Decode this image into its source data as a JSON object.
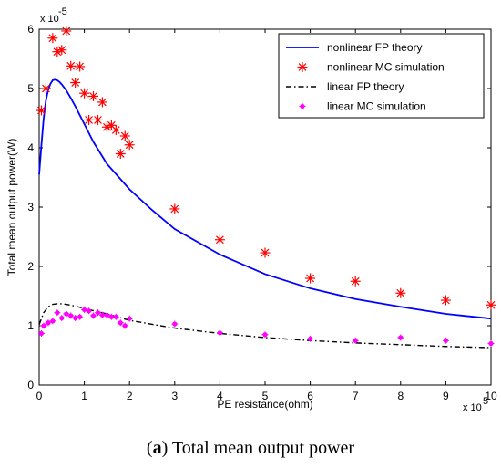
{
  "caption": {
    "prefix": "(a)",
    "letter": "a",
    "text": "Total mean output power"
  },
  "chart_data": {
    "type": "line",
    "title": "",
    "xlabel": "PE resistance(ohm)",
    "ylabel": "Total mean output power(W)",
    "x_exponent_label": "x 10",
    "x_exponent_power": "5",
    "y_exponent_label": "x 10",
    "y_exponent_power": "-5",
    "xlim": [
      0,
      10
    ],
    "ylim": [
      0,
      6
    ],
    "x_ticks": [
      "0",
      "1",
      "2",
      "3",
      "4",
      "5",
      "6",
      "7",
      "8",
      "9",
      "10"
    ],
    "y_ticks": [
      "0",
      "1",
      "2",
      "3",
      "4",
      "5",
      "6"
    ],
    "grid": false,
    "legend_position": "top-right",
    "series": [
      {
        "name": "nonlinear FP theory",
        "style": "solid",
        "color": "#0000ff",
        "x": [
          0.0,
          0.05,
          0.1,
          0.15,
          0.2,
          0.25,
          0.3,
          0.35,
          0.4,
          0.45,
          0.5,
          0.6,
          0.7,
          0.8,
          1.0,
          1.2,
          1.5,
          2.0,
          2.5,
          3.0,
          4.0,
          5.0,
          6.0,
          7.0,
          8.0,
          9.0,
          10.0
        ],
        "y": [
          3.55,
          4.05,
          4.5,
          4.8,
          4.98,
          5.08,
          5.14,
          5.15,
          5.14,
          5.11,
          5.07,
          4.97,
          4.84,
          4.7,
          4.4,
          4.1,
          3.73,
          3.3,
          2.95,
          2.63,
          2.2,
          1.87,
          1.63,
          1.45,
          1.32,
          1.2,
          1.12
        ]
      },
      {
        "name": "nonlinear MC simulation",
        "style": "asterisk",
        "color": "#ff0000",
        "x": [
          0.05,
          0.15,
          0.3,
          0.4,
          0.5,
          0.6,
          0.7,
          0.8,
          0.9,
          1.0,
          1.1,
          1.2,
          1.3,
          1.4,
          1.5,
          1.6,
          1.7,
          1.8,
          1.9,
          2.0,
          3.0,
          4.0,
          5.0,
          6.0,
          7.0,
          8.0,
          9.0,
          10.0
        ],
        "y": [
          4.63,
          5.0,
          5.85,
          5.62,
          5.65,
          5.97,
          5.38,
          5.1,
          5.37,
          4.92,
          4.47,
          4.87,
          4.47,
          4.77,
          4.35,
          4.38,
          4.3,
          3.9,
          4.2,
          4.05,
          2.97,
          2.45,
          2.23,
          1.8,
          1.75,
          1.55,
          1.43,
          1.35
        ]
      },
      {
        "name": "linear FP theory",
        "style": "dashdot",
        "color": "#000000",
        "x": [
          0.0,
          0.1,
          0.2,
          0.3,
          0.4,
          0.5,
          0.6,
          0.8,
          1.0,
          1.5,
          2.0,
          3.0,
          4.0,
          5.0,
          6.0,
          7.0,
          8.0,
          9.0,
          10.0
        ],
        "y": [
          1.02,
          1.22,
          1.32,
          1.36,
          1.37,
          1.37,
          1.36,
          1.33,
          1.29,
          1.2,
          1.09,
          0.96,
          0.87,
          0.8,
          0.75,
          0.71,
          0.68,
          0.65,
          0.63
        ]
      },
      {
        "name": "linear MC simulation",
        "style": "dot-marker",
        "color": "#ff00ff",
        "x": [
          0.05,
          0.1,
          0.2,
          0.3,
          0.4,
          0.5,
          0.6,
          0.7,
          0.8,
          0.9,
          1.0,
          1.1,
          1.2,
          1.3,
          1.4,
          1.5,
          1.6,
          1.7,
          1.8,
          1.9,
          2.0,
          3.0,
          4.0,
          5.0,
          6.0,
          7.0,
          8.0,
          9.0,
          10.0
        ],
        "y": [
          0.87,
          1.0,
          1.05,
          1.08,
          1.22,
          1.13,
          1.2,
          1.17,
          1.13,
          1.15,
          1.27,
          1.25,
          1.17,
          1.22,
          1.18,
          1.18,
          1.15,
          1.15,
          1.05,
          1.0,
          1.12,
          1.03,
          0.88,
          0.85,
          0.78,
          0.75,
          0.8,
          0.75,
          0.7
        ]
      }
    ]
  }
}
